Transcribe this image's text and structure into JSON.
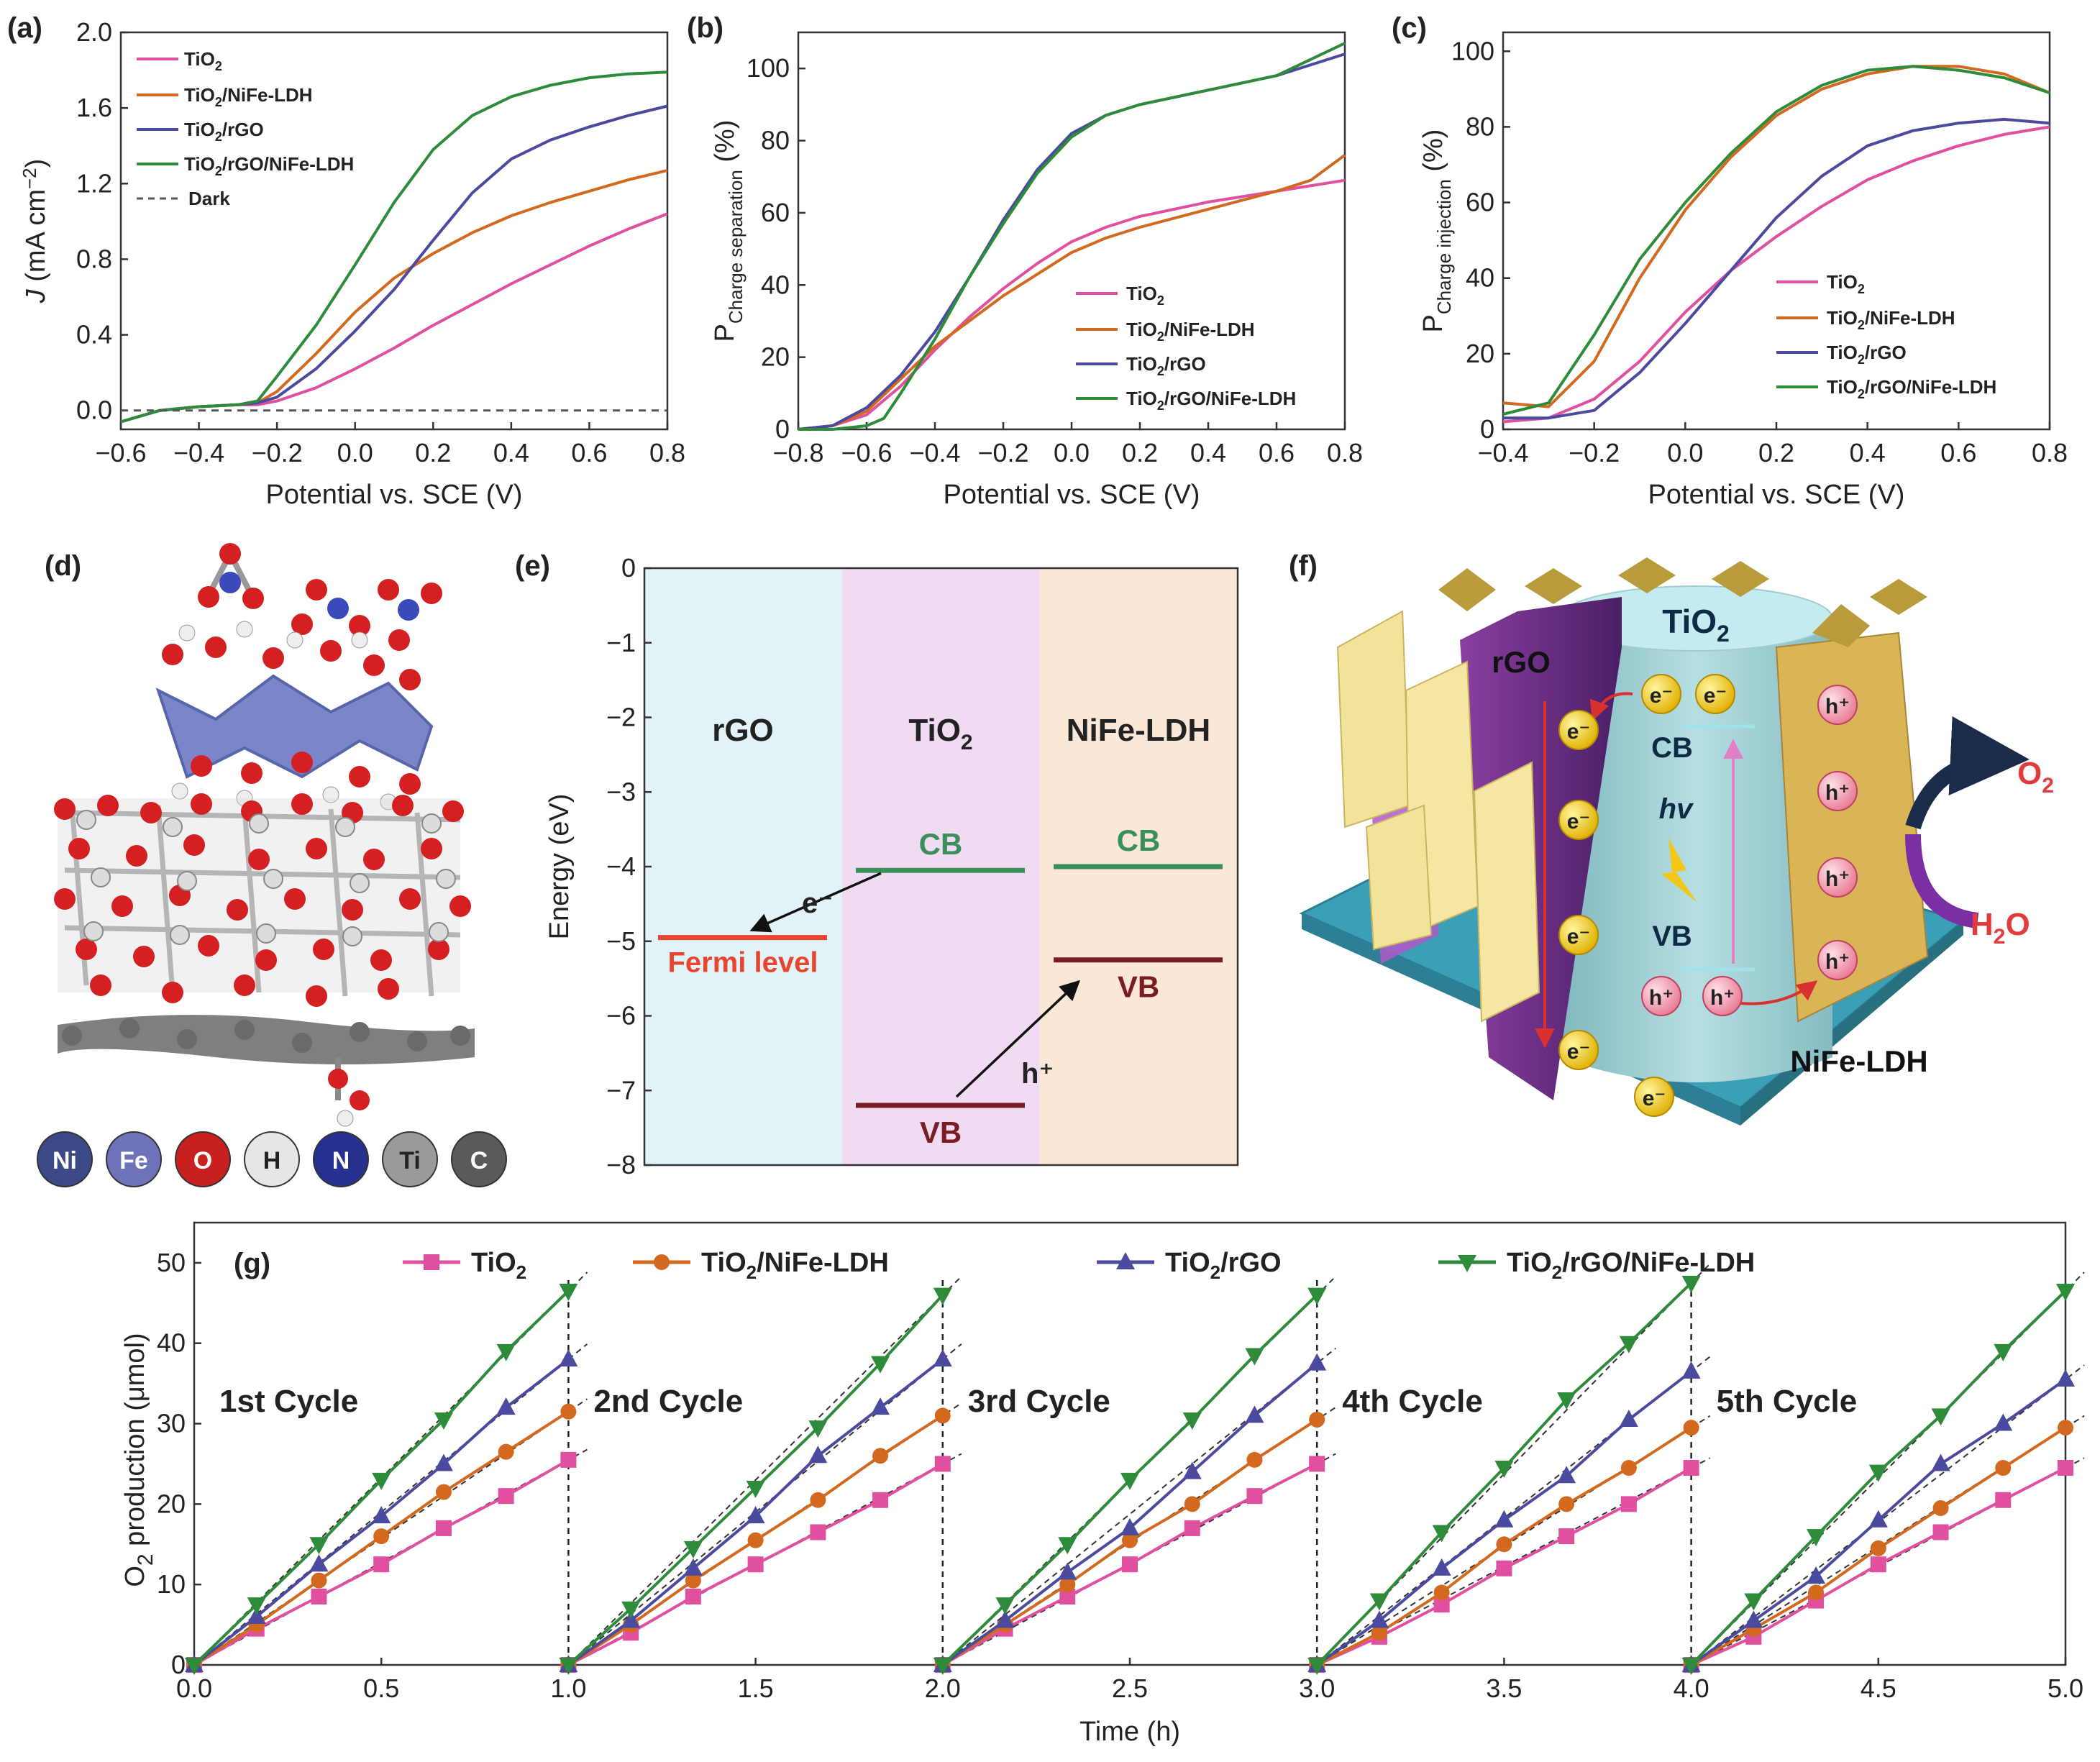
{
  "colors": {
    "tio2": "#e0509f",
    "nife": "#d2691e",
    "rgo": "#4a4a9e",
    "full": "#2e8b3a",
    "dark": "#555555"
  },
  "panels": {
    "a": "(a)",
    "b": "(b)",
    "c": "(c)",
    "d": "(d)",
    "e": "(e)",
    "f": "(f)",
    "g": "(g)"
  },
  "legend": {
    "tio2": {
      "base": "TiO",
      "sub": "2",
      "rest": ""
    },
    "nife": {
      "base": "TiO",
      "sub": "2",
      "rest": "/NiFe-LDH"
    },
    "rgo": {
      "base": "TiO",
      "sub": "2",
      "rest": "/rGO"
    },
    "full": {
      "base": "TiO",
      "sub": "2",
      "rest": "/rGO/NiFe-LDH"
    },
    "dark": "Dark"
  },
  "panel_a": {
    "ylabel": {
      "italic": "J",
      "rest": " (mA cm",
      "sup": "−2",
      "close": ")"
    },
    "xlabel": "Potential vs. SCE (V)",
    "xticks": [
      "−0.6",
      "−0.4",
      "−0.2",
      "0.0",
      "0.2",
      "0.4",
      "0.6",
      "0.8"
    ],
    "yticks": [
      "0.0",
      "0.4",
      "0.8",
      "1.2",
      "1.6",
      "2.0"
    ]
  },
  "panel_b": {
    "ylabel": {
      "main": "P",
      "sub": "Charge separation",
      "rest": " (%)"
    },
    "xlabel": "Potential vs. SCE (V)",
    "xticks": [
      "−0.8",
      "−0.6",
      "−0.4",
      "−0.2",
      "0.0",
      "0.2",
      "0.4",
      "0.6",
      "0.8"
    ],
    "yticks": [
      "0",
      "20",
      "40",
      "60",
      "80",
      "100"
    ]
  },
  "panel_c": {
    "ylabel": {
      "main": "P",
      "sub": "Charge injection",
      "rest": " (%)"
    },
    "xlabel": "Potential vs. SCE (V)",
    "xticks": [
      "−0.4",
      "−0.2",
      "0.0",
      "0.2",
      "0.4",
      "0.6",
      "0.8"
    ],
    "yticks": [
      "0",
      "20",
      "40",
      "60",
      "80",
      "100"
    ]
  },
  "panel_d": {
    "atoms": [
      "Ni",
      "Fe",
      "O",
      "H",
      "N",
      "Ti",
      "C"
    ]
  },
  "panel_e": {
    "ylabel": "Energy (eV)",
    "yticks": [
      "0",
      "−1",
      "−2",
      "−3",
      "−4",
      "−5",
      "−6",
      "−7",
      "−8"
    ],
    "rgo": "rGO",
    "tio2_base": "TiO",
    "tio2_sub": "2",
    "nife": "NiFe-LDH",
    "cb": "CB",
    "vb": "VB",
    "fermi": "Fermi level",
    "electron": "e⁻",
    "hole": "h⁺"
  },
  "panel_f": {
    "tio2_base": "TiO",
    "tio2_sub": "2",
    "rgo": "rGO",
    "cb": "CB",
    "vb": "VB",
    "hv": "hv",
    "nife": "NiFe-LDH",
    "o2_base": "O",
    "o2_sub": "2",
    "h2o_base": "H",
    "h2o_sub": "2",
    "h2o_rest": "O",
    "electron": "e⁻",
    "hole": "h⁺"
  },
  "panel_g": {
    "ylabel": {
      "base": "O",
      "sub": "2",
      "rest": " production (μmol)"
    },
    "xlabel": "Time (h)",
    "xticks": [
      "0.0",
      "0.5",
      "1.0",
      "1.5",
      "2.0",
      "2.5",
      "3.0",
      "3.5",
      "4.0",
      "4.5",
      "5.0"
    ],
    "yticks": [
      "0",
      "10",
      "20",
      "30",
      "40",
      "50"
    ],
    "cycles": [
      "1st Cycle",
      "2nd Cycle",
      "3rd Cycle",
      "4th Cycle",
      "5th Cycle"
    ]
  },
  "chart_data": [
    {
      "panel": "a",
      "type": "line",
      "xlabel": "Potential vs. SCE (V)",
      "ylabel": "J (mA cm−2)",
      "xlim": [
        -0.6,
        0.8
      ],
      "ylim": [
        0,
        2.0
      ],
      "series": [
        {
          "name": "TiO2",
          "x": [
            -0.6,
            -0.5,
            -0.4,
            -0.3,
            -0.25,
            -0.2,
            -0.1,
            0.0,
            0.1,
            0.2,
            0.3,
            0.4,
            0.5,
            0.6,
            0.7,
            0.8
          ],
          "values": [
            -0.06,
            0.0,
            0.02,
            0.03,
            0.03,
            0.05,
            0.12,
            0.22,
            0.33,
            0.45,
            0.56,
            0.67,
            0.77,
            0.87,
            0.96,
            1.04
          ]
        },
        {
          "name": "TiO2/NiFe-LDH",
          "x": [
            -0.6,
            -0.5,
            -0.4,
            -0.3,
            -0.25,
            -0.2,
            -0.1,
            0.0,
            0.1,
            0.2,
            0.3,
            0.4,
            0.5,
            0.6,
            0.7,
            0.8
          ],
          "values": [
            -0.06,
            0.0,
            0.02,
            0.03,
            0.04,
            0.1,
            0.3,
            0.52,
            0.7,
            0.83,
            0.94,
            1.03,
            1.1,
            1.16,
            1.22,
            1.27
          ]
        },
        {
          "name": "TiO2/rGO",
          "x": [
            -0.6,
            -0.5,
            -0.4,
            -0.3,
            -0.25,
            -0.2,
            -0.1,
            0.0,
            0.1,
            0.2,
            0.3,
            0.4,
            0.5,
            0.6,
            0.7,
            0.8
          ],
          "values": [
            -0.06,
            0.0,
            0.02,
            0.03,
            0.04,
            0.07,
            0.22,
            0.42,
            0.64,
            0.9,
            1.15,
            1.33,
            1.43,
            1.5,
            1.56,
            1.61
          ]
        },
        {
          "name": "TiO2/rGO/NiFe-LDH",
          "x": [
            -0.6,
            -0.5,
            -0.4,
            -0.3,
            -0.25,
            -0.2,
            -0.1,
            0.0,
            0.1,
            0.2,
            0.3,
            0.4,
            0.5,
            0.6,
            0.7,
            0.8
          ],
          "values": [
            -0.06,
            0.0,
            0.02,
            0.03,
            0.05,
            0.18,
            0.45,
            0.77,
            1.1,
            1.38,
            1.56,
            1.66,
            1.72,
            1.76,
            1.78,
            1.79
          ]
        },
        {
          "name": "Dark",
          "x": [
            -0.6,
            0.8
          ],
          "values": [
            0.0,
            0.0
          ]
        }
      ]
    },
    {
      "panel": "b",
      "type": "line",
      "xlabel": "Potential vs. SCE (V)",
      "ylabel": "P Charge separation (%)",
      "xlim": [
        -0.8,
        0.8
      ],
      "ylim": [
        0,
        110
      ],
      "series": [
        {
          "name": "TiO2",
          "x": [
            -0.8,
            -0.7,
            -0.6,
            -0.5,
            -0.4,
            -0.3,
            -0.2,
            -0.1,
            0.0,
            0.1,
            0.2,
            0.4,
            0.6,
            0.8
          ],
          "values": [
            0,
            1,
            4,
            12,
            22,
            31,
            39,
            46,
            52,
            56,
            59,
            63,
            66,
            69
          ]
        },
        {
          "name": "TiO2/NiFe-LDH",
          "x": [
            -0.8,
            -0.7,
            -0.6,
            -0.5,
            -0.4,
            -0.3,
            -0.2,
            -0.1,
            0.0,
            0.1,
            0.2,
            0.4,
            0.6,
            0.7,
            0.8
          ],
          "values": [
            0,
            1,
            5,
            14,
            23,
            30,
            37,
            43,
            49,
            53,
            56,
            61,
            66,
            69,
            76
          ]
        },
        {
          "name": "TiO2/rGO",
          "x": [
            -0.8,
            -0.7,
            -0.6,
            -0.5,
            -0.4,
            -0.3,
            -0.2,
            -0.1,
            0.0,
            0.1,
            0.2,
            0.4,
            0.6,
            0.8
          ],
          "values": [
            0,
            1,
            6,
            15,
            27,
            42,
            58,
            72,
            82,
            87,
            90,
            94,
            98,
            104
          ]
        },
        {
          "name": "TiO2/rGO/NiFe-LDH",
          "x": [
            -0.8,
            -0.7,
            -0.6,
            -0.55,
            -0.5,
            -0.4,
            -0.3,
            -0.2,
            -0.1,
            0.0,
            0.1,
            0.2,
            0.4,
            0.6,
            0.8
          ],
          "values": [
            0,
            0,
            1,
            3,
            10,
            25,
            42,
            57,
            71,
            81,
            87,
            90,
            94,
            98,
            107
          ]
        }
      ]
    },
    {
      "panel": "c",
      "type": "line",
      "xlabel": "Potential vs. SCE (V)",
      "ylabel": "P Charge injection (%)",
      "xlim": [
        -0.4,
        0.8
      ],
      "ylim": [
        0,
        105
      ],
      "series": [
        {
          "name": "TiO2",
          "x": [
            -0.4,
            -0.3,
            -0.2,
            -0.1,
            0.0,
            0.1,
            0.2,
            0.3,
            0.4,
            0.5,
            0.6,
            0.7,
            0.8
          ],
          "values": [
            2,
            3,
            8,
            18,
            31,
            42,
            51,
            59,
            66,
            71,
            75,
            78,
            80
          ]
        },
        {
          "name": "TiO2/NiFe-LDH",
          "x": [
            -0.4,
            -0.3,
            -0.2,
            -0.1,
            0.0,
            0.1,
            0.2,
            0.3,
            0.4,
            0.5,
            0.6,
            0.7,
            0.8
          ],
          "values": [
            7,
            6,
            18,
            40,
            58,
            72,
            83,
            90,
            94,
            96,
            96,
            94,
            89
          ]
        },
        {
          "name": "TiO2/rGO",
          "x": [
            -0.4,
            -0.3,
            -0.2,
            -0.1,
            0.0,
            0.1,
            0.2,
            0.3,
            0.4,
            0.5,
            0.6,
            0.7,
            0.8
          ],
          "values": [
            3,
            3,
            5,
            15,
            28,
            42,
            56,
            67,
            75,
            79,
            81,
            82,
            81
          ]
        },
        {
          "name": "TiO2/rGO/NiFe-LDH",
          "x": [
            -0.4,
            -0.3,
            -0.2,
            -0.1,
            0.0,
            0.1,
            0.2,
            0.3,
            0.4,
            0.5,
            0.6,
            0.7,
            0.8
          ],
          "values": [
            4,
            7,
            25,
            45,
            60,
            73,
            84,
            91,
            95,
            96,
            95,
            93,
            89
          ]
        }
      ]
    },
    {
      "panel": "e",
      "type": "diagram",
      "ylabel": "Energy (eV)",
      "ylim": [
        -8,
        0
      ],
      "levels": [
        {
          "name": "Fermi level",
          "material": "rGO",
          "value": -4.95
        },
        {
          "name": "CB",
          "material": "TiO2",
          "value": -4.05
        },
        {
          "name": "VB",
          "material": "TiO2",
          "value": -7.2
        },
        {
          "name": "CB",
          "material": "NiFe-LDH",
          "value": -4.0
        },
        {
          "name": "VB",
          "material": "NiFe-LDH",
          "value": -5.25
        }
      ]
    },
    {
      "panel": "g",
      "type": "line",
      "xlabel": "Time (h)",
      "ylabel": "O2 production (μmol)",
      "xlim": [
        0,
        5
      ],
      "ylim": [
        0,
        55
      ],
      "x_per_cycle": [
        0,
        0.1667,
        0.3333,
        0.5,
        0.6667,
        0.8333,
        1.0
      ],
      "series": [
        {
          "name": "TiO2",
          "marker": "square",
          "cycles": [
            [
              0,
              4.5,
              8.5,
              12.5,
              17,
              21,
              25.5
            ],
            [
              0,
              4,
              8.5,
              12.5,
              16.5,
              20.5,
              25
            ],
            [
              0,
              4.5,
              8.5,
              12.5,
              17,
              21,
              25
            ],
            [
              0,
              3.5,
              7.5,
              12,
              16,
              20,
              24.5
            ],
            [
              0,
              3.5,
              8,
              12.5,
              16.5,
              20.5,
              24.5
            ]
          ]
        },
        {
          "name": "TiO2/NiFe-LDH",
          "marker": "circle",
          "cycles": [
            [
              0,
              5,
              10.5,
              16,
              21.5,
              26.5,
              31.5
            ],
            [
              0,
              5,
              10.5,
              15.5,
              20.5,
              26,
              31
            ],
            [
              0,
              5,
              10,
              15.5,
              20,
              25.5,
              30.5
            ],
            [
              0,
              4,
              9,
              15,
              20,
              24.5,
              29.5
            ],
            [
              0,
              4.5,
              9,
              14.5,
              19.5,
              24.5,
              29.5
            ]
          ]
        },
        {
          "name": "TiO2/rGO",
          "marker": "triangle-up",
          "cycles": [
            [
              0,
              6,
              12.5,
              18.5,
              25,
              32,
              38
            ],
            [
              0,
              5.5,
              12,
              18.5,
              26,
              32,
              38
            ],
            [
              0,
              5.5,
              11.5,
              17,
              24,
              31,
              37.5
            ],
            [
              0,
              5.5,
              12,
              18,
              23.5,
              30.5,
              36.5
            ],
            [
              0,
              5.5,
              11,
              18,
              25,
              30,
              35.5
            ]
          ]
        },
        {
          "name": "TiO2/rGO/NiFe-LDH",
          "marker": "triangle-down",
          "cycles": [
            [
              0,
              7.5,
              15,
              23,
              30.5,
              39,
              46.5
            ],
            [
              0,
              7,
              14.5,
              22,
              29.5,
              37.5,
              46
            ],
            [
              0,
              7.5,
              15,
              23,
              30.5,
              38.5,
              46
            ],
            [
              0,
              8,
              16.5,
              24.5,
              33,
              40,
              47.5
            ],
            [
              0,
              8,
              16,
              24,
              31,
              39,
              46.5
            ]
          ]
        }
      ]
    }
  ]
}
